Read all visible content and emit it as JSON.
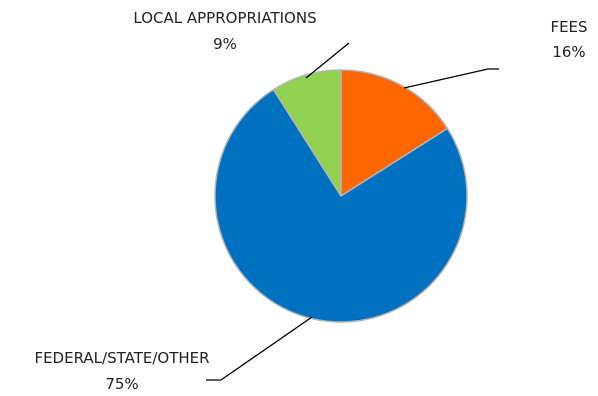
{
  "chart_data": {
    "type": "pie",
    "slices": [
      {
        "name": "FEES",
        "value": 16,
        "label": "16%",
        "color": "#ff6600"
      },
      {
        "name": "FEDERAL/STATE/OTHER",
        "value": 75,
        "label": "75%",
        "color": "#0070c0"
      },
      {
        "name": "LOCAL APPROPRIATIONS",
        "value": 9,
        "label": "9%",
        "color": "#92d050"
      }
    ],
    "start_angle_deg": 0,
    "direction": "clockwise",
    "slice_border_color": "#b4b4b4",
    "leader_line_color": "#000000"
  }
}
